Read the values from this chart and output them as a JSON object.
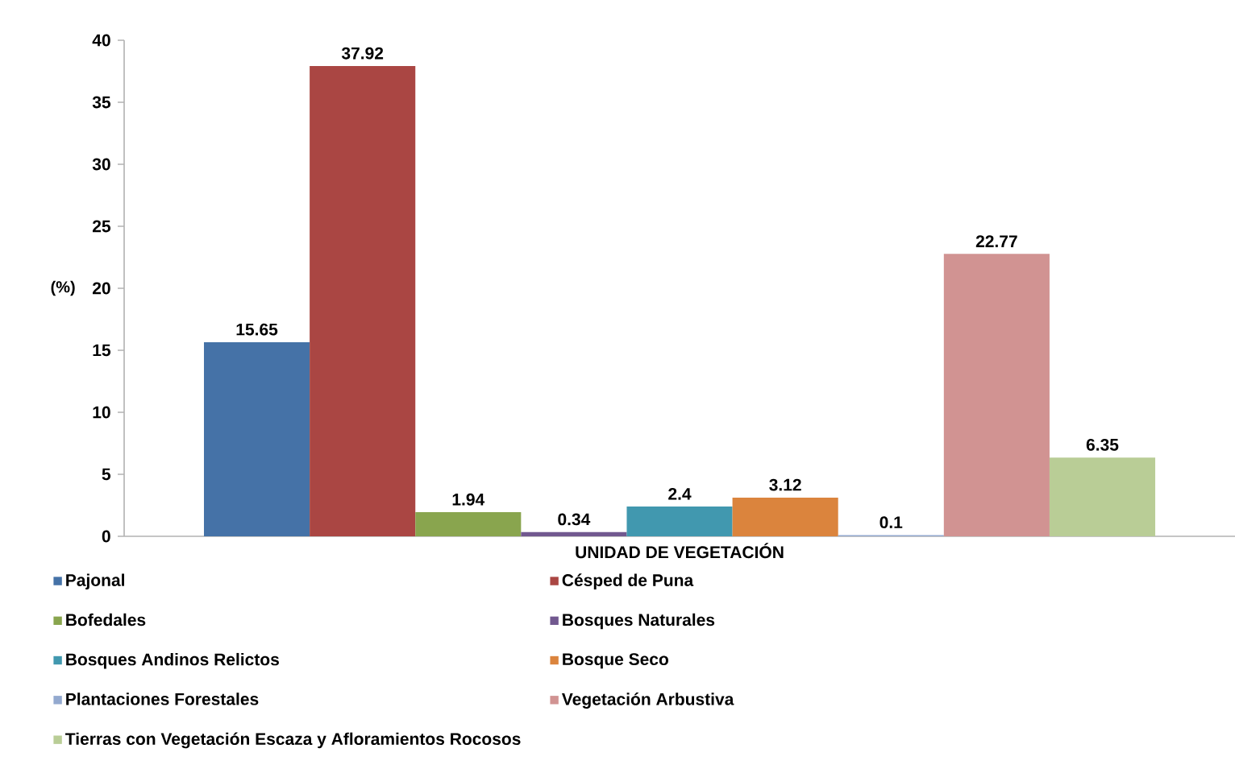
{
  "chart_data": {
    "type": "bar",
    "ylabel": "(%)",
    "categories": [
      "UNIDAD DE VEGETACIÓN"
    ],
    "series": [
      {
        "name": "Pajonal",
        "color": "#4572a7",
        "values": [
          15.65
        ]
      },
      {
        "name": "Césped de Puna",
        "color": "#aa4643",
        "values": [
          37.92
        ]
      },
      {
        "name": "Bofedales",
        "color": "#89a54e",
        "values": [
          1.94
        ]
      },
      {
        "name": "Bosques Naturales",
        "color": "#71588f",
        "values": [
          0.34
        ]
      },
      {
        "name": "Bosques Andinos Relictos",
        "color": "#4198af",
        "values": [
          2.4
        ]
      },
      {
        "name": "Bosque Seco",
        "color": "#db843d",
        "values": [
          3.12
        ]
      },
      {
        "name": "Plantaciones Forestales",
        "color": "#93a9cf",
        "values": [
          0.1
        ]
      },
      {
        "name": "Vegetación Arbustiva",
        "color": "#d19392",
        "values": [
          22.77
        ]
      },
      {
        "name": "Tierras con Vegetación Escaza y Afloramientos Rocosos",
        "color": "#b9cd96",
        "values": [
          6.35
        ]
      }
    ],
    "ylim": [
      0,
      40
    ],
    "yticks": [
      0,
      5,
      10,
      15,
      20,
      25,
      30,
      35,
      40
    ],
    "data_labels": true,
    "legend": "bottom"
  }
}
